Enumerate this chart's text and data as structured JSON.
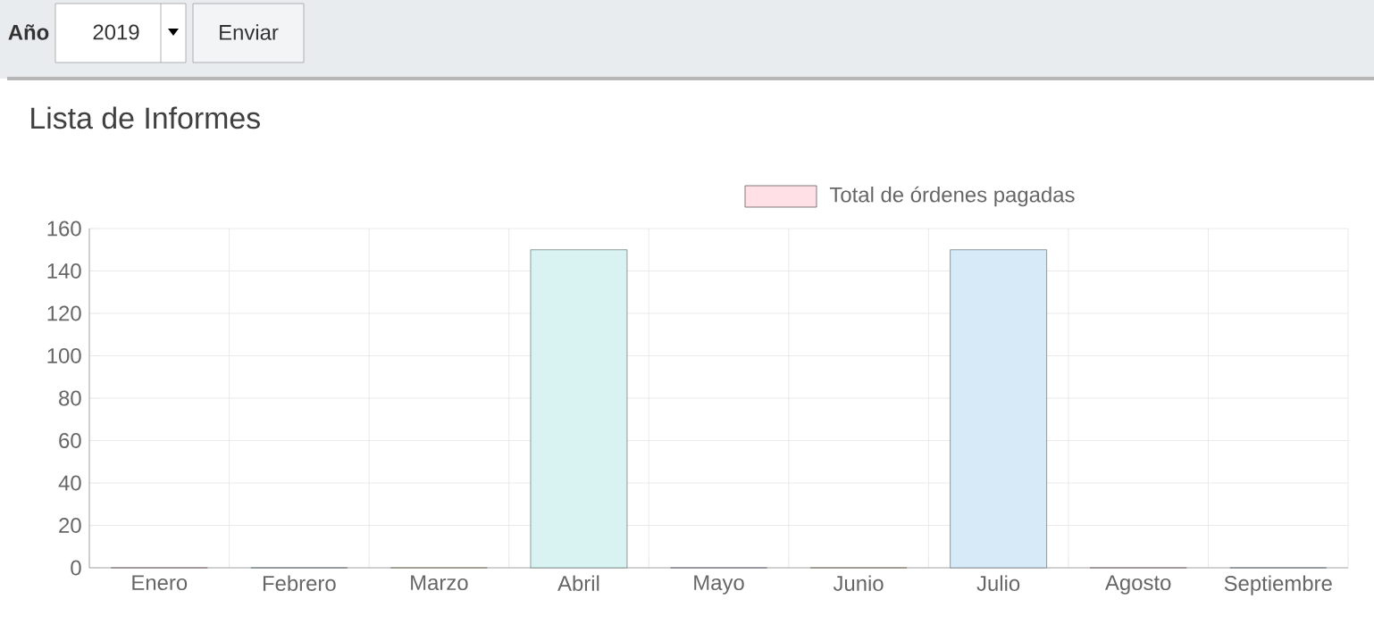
{
  "chart_data": {
    "type": "bar",
    "title": "Lista de Informes",
    "annotations": [
      "Año",
      "2019",
      "Enviar"
    ],
    "categories": [
      "Enero",
      "Febrero",
      "Marzo",
      "Abril",
      "Mayo",
      "Junio",
      "Julio",
      "Agosto",
      "Septiembre"
    ],
    "series": [
      {
        "name": "Total de órdenes pagadas",
        "color": "#ffe0e6",
        "values": [
          0,
          0,
          0,
          150,
          0,
          0,
          150,
          0,
          0
        ],
        "colors": [
          "#ffe0e6",
          "#d6eaf8",
          "#fff3d6",
          "#d9f2f2",
          "#e6dcff",
          "#ffe9d6",
          "#d6eaf8",
          "#ffe0e6",
          "#d6eaf8"
        ]
      }
    ],
    "ylim": [
      0,
      160
    ],
    "yticks": [
      0,
      20,
      40,
      60,
      80,
      100,
      120,
      140,
      160
    ],
    "grid": true,
    "legend": "top"
  }
}
